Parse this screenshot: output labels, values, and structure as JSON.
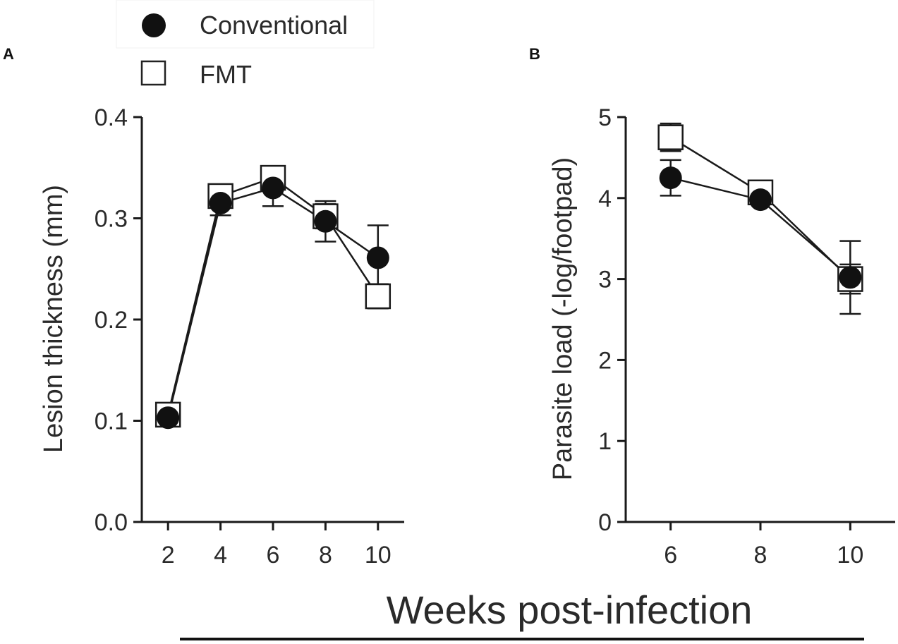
{
  "legend": [
    {
      "label": "Conventional",
      "marker": "filled-circle"
    },
    {
      "label": "FMT",
      "marker": "open-square"
    }
  ],
  "shared_xlabel": "Weeks post-infection",
  "colors": {
    "ink": "#1a1a1a",
    "background": "#ffffff"
  },
  "chart_data": [
    {
      "panel": "A",
      "type": "line",
      "xlabel": "",
      "ylabel": "Lesion thickness (mm)",
      "x": [
        2,
        4,
        6,
        8,
        10
      ],
      "xlim": [
        1,
        11
      ],
      "ylim": [
        0,
        0.4
      ],
      "xticks": [
        "2",
        "4",
        "6",
        "8",
        "10"
      ],
      "yticks": [
        "0.0",
        "0.1",
        "0.2",
        "0.3",
        "0.4"
      ],
      "series": [
        {
          "name": "Conventional",
          "marker": "filled-circle",
          "values": [
            0.103,
            0.315,
            0.33,
            0.297,
            0.261
          ],
          "errors": [
            0.005,
            0.012,
            0.018,
            0.02,
            0.032
          ]
        },
        {
          "name": "FMT",
          "marker": "open-square",
          "values": [
            0.106,
            0.322,
            0.34,
            0.302,
            0.223
          ],
          "errors": [
            0.005,
            0.008,
            0.01,
            0.012,
            0.012
          ]
        }
      ]
    },
    {
      "panel": "B",
      "type": "line",
      "xlabel": "",
      "ylabel": "Parasite load (-log/footpad)",
      "x": [
        6,
        8,
        10
      ],
      "xlim": [
        5,
        11
      ],
      "ylim": [
        0,
        5
      ],
      "xticks": [
        "6",
        "8",
        "10"
      ],
      "yticks": [
        "0",
        "1",
        "2",
        "3",
        "4",
        "5"
      ],
      "series": [
        {
          "name": "Conventional",
          "marker": "filled-circle",
          "values": [
            4.25,
            3.98,
            3.02
          ],
          "errors": [
            0.22,
            0.03,
            0.45
          ]
        },
        {
          "name": "FMT",
          "marker": "open-square",
          "values": [
            4.75,
            4.07,
            3.0
          ],
          "errors": [
            0.17,
            0.03,
            0.18
          ]
        }
      ]
    }
  ]
}
